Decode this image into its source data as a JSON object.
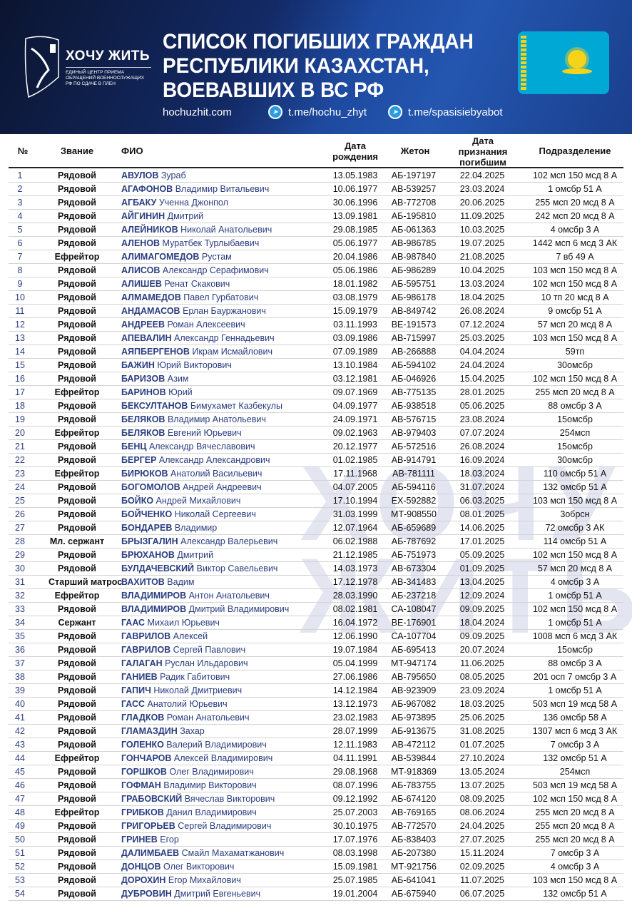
{
  "header": {
    "logo_title": "ХОЧУ ЖИТЬ",
    "logo_subtitle": "ЕДИНЫЙ ЦЕНТР ПРИЕМА ОБРАЩЕНИЙ ВОЕННОСЛУЖАЩИХ РФ ПО СДАЧЕ В ПЛЕН",
    "title_line1": "СПИСОК ПОГИБШИХ ГРАЖДАН",
    "title_line2": "РЕСПУБЛИКИ КАЗАХСТАН,",
    "title_line3": "ВОЕВАВШИХ В ВС РФ",
    "site": "hochuzhit.com",
    "tg1": "t.me/hochu_zhyt",
    "tg2": "t.me/spasisiebyabot",
    "flag_icon": "kazakhstan-flag",
    "watermark": "ХОЧУ ЖИТЬ"
  },
  "colors": {
    "header_bg": "#132a66",
    "name_text": "#2a3d80",
    "flag": "#00a8d6"
  },
  "table": {
    "columns": [
      "№",
      "Звание",
      "ФИО",
      "Дата рождения",
      "Жетон",
      "Дата признания погибшим",
      "Подразделение"
    ],
    "rows": [
      [
        "1",
        "Рядовой",
        "АВУЛОВ Зураб",
        "13.05.1983",
        "АБ-197197",
        "22.04.2025",
        "102 мсп 150 мсд 8 А"
      ],
      [
        "2",
        "Рядовой",
        "АГАФОНОВ Владимир Витальевич",
        "10.06.1977",
        "АВ-539257",
        "23.03.2024",
        "1 омсбр 51 А"
      ],
      [
        "3",
        "Рядовой",
        "АГБАКУ Ученна Джонпол",
        "30.06.1996",
        "АВ-772708",
        "20.06.2025",
        "255 мсп 20 мсд 8 А"
      ],
      [
        "4",
        "Рядовой",
        "АЙГИНИН Дмитрий",
        "13.09.1981",
        "АБ-195810",
        "11.09.2025",
        "242 мсп 20 мсд 8 А"
      ],
      [
        "5",
        "Рядовой",
        "АЛЕЙНИКОВ Николай Анатольевич",
        "29.08.1985",
        "АБ-061363",
        "10.03.2025",
        "4 омсбр 3 А"
      ],
      [
        "6",
        "Рядовой",
        "АЛЕНОВ Муратбек Турлыбаевич",
        "05.06.1977",
        "АВ-986785",
        "19.07.2025",
        "1442 мсп 6 мсд 3 АК"
      ],
      [
        "7",
        "Ефрейтор",
        "АЛИМАГОМЕДОВ Рустам",
        "20.04.1986",
        "АВ-987840",
        "21.08.2025",
        "7 вб 49 А"
      ],
      [
        "8",
        "Рядовой",
        "АЛИСОВ Александр Серафимович",
        "05.06.1986",
        "АБ-986289",
        "10.04.2025",
        "103 мсп 150 мсд 8 А"
      ],
      [
        "9",
        "Рядовой",
        "АЛИШЕВ Ренат Скакович",
        "18.01.1982",
        "АБ-595751",
        "13.03.2024",
        "102 мсп 150 мсд 8 А"
      ],
      [
        "10",
        "Рядовой",
        "АЛМАМЕДОВ Павел Гурбатович",
        "03.08.1979",
        "АБ-986178",
        "18.04.2025",
        "10 тп 20 мсд 8 А"
      ],
      [
        "11",
        "Рядовой",
        "АНДАМАСОВ Ерлан Бауржанович",
        "15.09.1979",
        "АВ-849742",
        "26.08.2024",
        "9 омсбр 51 А"
      ],
      [
        "12",
        "Рядовой",
        "АНДРЕЕВ Роман Алексеевич",
        "03.11.1993",
        "ВЕ-191573",
        "07.12.2024",
        "57 мсп 20 мсд 8 А"
      ],
      [
        "13",
        "Рядовой",
        "АПЕВАЛИН Александр Геннадьевич",
        "03.09.1986",
        "АВ-715997",
        "25.03.2025",
        "103 мсп 150 мсд 8 А"
      ],
      [
        "14",
        "Рядовой",
        "АЯПБЕРГЕНОВ Икрам Исмайлович",
        "07.09.1989",
        "АВ-266888",
        "04.04.2024",
        "59тп"
      ],
      [
        "15",
        "Рядовой",
        "БАЖИН Юрий Викторович",
        "13.10.1984",
        "АБ-594102",
        "24.04.2024",
        "30омсбр"
      ],
      [
        "16",
        "Рядовой",
        "БАРИЗОВ Азим",
        "03.12.1981",
        "АБ-046926",
        "15.04.2025",
        "102 мсп 150 мсд 8 А"
      ],
      [
        "17",
        "Ефрейтор",
        "БАРИНОВ Юрий",
        "09.07.1969",
        "АВ-775135",
        "28.01.2025",
        "255 мсп 20 мсд 8 А"
      ],
      [
        "18",
        "Рядовой",
        "БЕКСУЛТАНОВ Бимухамет Казбекулы",
        "04.09.1977",
        "АБ-938518",
        "05.06.2025",
        "88 омсбр 3 А"
      ],
      [
        "19",
        "Рядовой",
        "БЕЛЯКОВ Владимир Анатольевич",
        "24.09.1971",
        "АВ-576715",
        "23.08.2024",
        "15омсбр"
      ],
      [
        "20",
        "Ефрейтор",
        "БЕЛЯКОВ Евгений Юрьевич",
        "09.02.1963",
        "АВ-979403",
        "07.07.2024",
        "254мсп"
      ],
      [
        "21",
        "Рядовой",
        "БЕНЦ Александр Вячеславович",
        "20.12.1977",
        "АБ-572516",
        "26.08.2024",
        "15омсбр"
      ],
      [
        "22",
        "Рядовой",
        "БЕРГЕР Александр Александрович",
        "01.02.1985",
        "АВ-914791",
        "16.09.2024",
        "30омсбр"
      ],
      [
        "23",
        "Ефрейтор",
        "БИРЮКОВ Анатолий Васильевич",
        "17.11.1968",
        "АВ-781111",
        "18.03.2024",
        "110 омсбр 51 А"
      ],
      [
        "24",
        "Рядовой",
        "БОГОМОЛОВ Андрей Андреевич",
        "04.07.2005",
        "АБ-594116",
        "31.07.2024",
        "132 омсбр 51 А"
      ],
      [
        "25",
        "Рядовой",
        "БОЙКО Андрей Михайлович",
        "17.10.1994",
        "ЕХ-592882",
        "06.03.2025",
        "103 мсп 150 мсд 8 А"
      ],
      [
        "26",
        "Рядовой",
        "БОЙЧЕНКО Николай Сергеевич",
        "31.03.1999",
        "МТ-908550",
        "08.01.2025",
        "3обрсн"
      ],
      [
        "27",
        "Рядовой",
        "БОНДАРЕВ Владимир",
        "12.07.1964",
        "АБ-659689",
        "14.06.2025",
        "72 омсбр 3 АК"
      ],
      [
        "28",
        "Мл. сержант",
        "БРЫЗГАЛИН Александр Валерьевич",
        "06.02.1988",
        "АБ-787692",
        "17.01.2025",
        "114 омсбр 51 А"
      ],
      [
        "29",
        "Рядовой",
        "БРЮХАНОВ Дмитрий",
        "21.12.1985",
        "АБ-751973",
        "05.09.2025",
        "102 мсп 150 мсд 8 А"
      ],
      [
        "30",
        "Рядовой",
        "БУЛДАЧЕВСКИЙ Виктор Савельевич",
        "14.03.1973",
        "АВ-673304",
        "01.09.2025",
        "57 мсп 20 мсд 8 А"
      ],
      [
        "31",
        "Старший матрос",
        "ВАХИТОВ Вадим",
        "17.12.1978",
        "АВ-341483",
        "13.04.2025",
        "4 омсбр 3 А"
      ],
      [
        "32",
        "Ефрейтор",
        "ВЛАДИМИРОВ Антон Анатольевич",
        "28.03.1990",
        "АБ-237218",
        "12.09.2024",
        "1 омсбр 51 А"
      ],
      [
        "33",
        "Рядовой",
        "ВЛАДИМИРОВ Дмитрий Владимирович",
        "08.02.1981",
        "СА-108047",
        "09.09.2025",
        "102 мсп 150 мсд 8 А"
      ],
      [
        "34",
        "Сержант",
        "ГААС Михаил Юрьевич",
        "16.04.1972",
        "ВЕ-176901",
        "18.04.2024",
        "1 омсбр 51 А"
      ],
      [
        "35",
        "Рядовой",
        "ГАВРИЛОВ Алексей",
        "12.06.1990",
        "СА-107704",
        "09.09.2025",
        "1008 мсп 6 мсд 3 АК"
      ],
      [
        "36",
        "Рядовой",
        "ГАВРИЛОВ Сергей Павлович",
        "19.07.1984",
        "АБ-695413",
        "20.07.2024",
        "15омсбр"
      ],
      [
        "37",
        "Рядовой",
        "ГАЛАГАН Руслан Ильдарович",
        "05.04.1999",
        "МТ-947174",
        "11.06.2025",
        "88 омсбр 3 А"
      ],
      [
        "38",
        "Рядовой",
        "ГАНИЕВ Радик Габитович",
        "27.06.1986",
        "АВ-795650",
        "08.05.2025",
        "201 осп 7 омсбр 3 А"
      ],
      [
        "39",
        "Рядовой",
        "ГАПИЧ Николай Дмитриевич",
        "14.12.1984",
        "АВ-923909",
        "23.09.2024",
        "1 омсбр 51 А"
      ],
      [
        "40",
        "Рядовой",
        "ГАСС Анатолий Юрьевич",
        "13.12.1973",
        "АБ-967082",
        "18.03.2025",
        "503 мсп 19 мсд 58 А"
      ],
      [
        "41",
        "Рядовой",
        "ГЛАДКОВ Роман Анатольевич",
        "23.02.1983",
        "АБ-973895",
        "25.06.2025",
        "136 омсбр 58 А"
      ],
      [
        "42",
        "Рядовой",
        "ГЛАМАЗДИН Захар",
        "28.07.1999",
        "АБ-913675",
        "31.08.2025",
        "1307 мсп 6 мсд 3 АК"
      ],
      [
        "43",
        "Рядовой",
        "ГОЛЕНКО Валерий Владимирович",
        "12.11.1983",
        "АВ-472112",
        "01.07.2025",
        "7 омсбр 3 А"
      ],
      [
        "44",
        "Ефрейтор",
        "ГОНЧАРОВ Алексей Владимирович",
        "04.11.1991",
        "АВ-539844",
        "27.10.2024",
        "132 омсбр 51 А"
      ],
      [
        "45",
        "Рядовой",
        "ГОРШКОВ Олег Владимирович",
        "29.08.1968",
        "МТ-918369",
        "13.05.2024",
        "254мсп"
      ],
      [
        "46",
        "Рядовой",
        "ГОФМАН Владимир Викторович",
        "08.07.1996",
        "АБ-783755",
        "13.07.2025",
        "503 мсп 19 мсд 58 А"
      ],
      [
        "47",
        "Рядовой",
        "ГРАБОВСКИЙ Вячеслав Викторович",
        "09.12.1992",
        "АБ-674120",
        "08.09.2025",
        "102 мсп 150 мсд 8 А"
      ],
      [
        "48",
        "Ефрейтор",
        "ГРИБКОВ Данил Владимирович",
        "25.07.2003",
        "АВ-769165",
        "08.06.2024",
        "255 мсп 20 мсд 8 А"
      ],
      [
        "49",
        "Рядовой",
        "ГРИГОРЬЕВ Сергей Владимирович",
        "30.10.1975",
        "АВ-772570",
        "24.04.2025",
        "255 мсп 20 мсд 8 А"
      ],
      [
        "50",
        "Рядовой",
        "ГРИНЕВ Егор",
        "17.07.1976",
        "АБ-838403",
        "27.07.2025",
        "255 мсп 20 мсд 8 А"
      ],
      [
        "51",
        "Рядовой",
        "ДАЛИМБАЕВ Смайл Махаматжанович",
        "08.03.1998",
        "АБ-207380",
        "15.11.2024",
        "7 омсбр 3 А"
      ],
      [
        "52",
        "Рядовой",
        "ДОНЦОВ Олег Викторович",
        "15.09.1981",
        "МТ-921756",
        "02.09.2025",
        "4 омсбр 3 А"
      ],
      [
        "53",
        "Рядовой",
        "ДОРОХИН Егор Михайлович",
        "25.07.1985",
        "АБ-641041",
        "11.07.2025",
        "103 мсп 150 мсд 8 А"
      ],
      [
        "54",
        "Рядовой",
        "ДУБРОВИН Дмитрий Евгеньевич",
        "19.01.2004",
        "АБ-675940",
        "06.07.2025",
        "132 омсбр 51 А"
      ]
    ]
  }
}
